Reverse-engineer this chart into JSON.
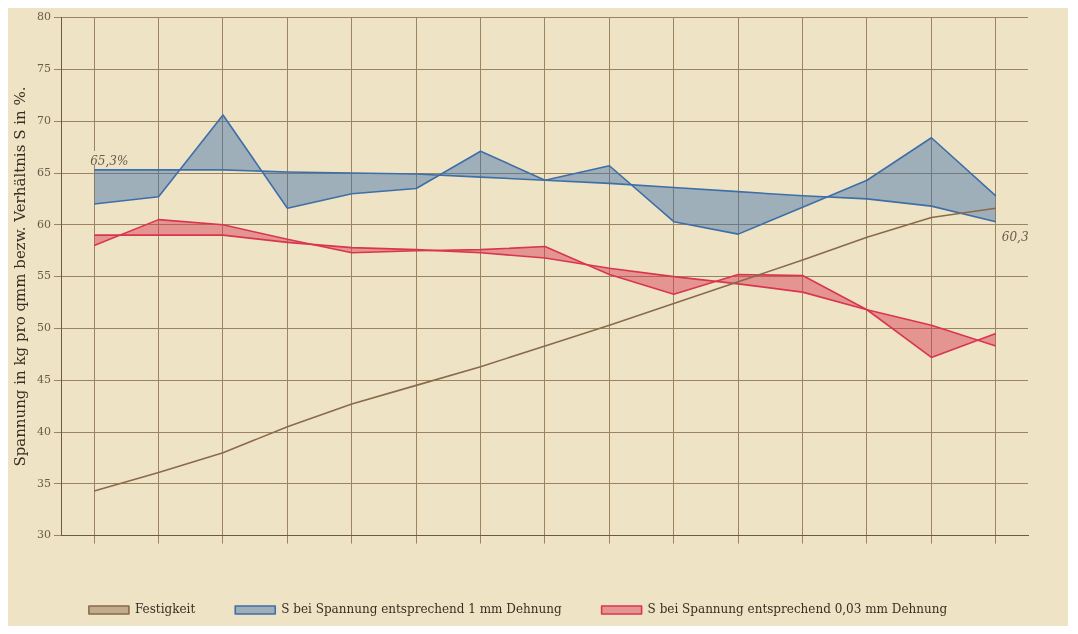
{
  "chart_data": {
    "type": "line",
    "ylabel": "Spannung in kg pro qmm bezw. Verhältnis S in %.",
    "categories": [
      null,
      null,
      null,
      null,
      null,
      null,
      null,
      null,
      null,
      null,
      null,
      null,
      null,
      null,
      null
    ],
    "series": [
      {
        "name": "Festigkeit",
        "color": "#8a6a4a",
        "values": [
          34.3,
          36.1,
          38.0,
          40.5,
          42.7,
          44.5,
          46.3,
          48.3,
          50.3,
          52.4,
          54.5,
          56.6,
          58.8,
          60.7,
          61.6
        ]
      },
      {
        "name": "S bei Spannung entsprechend 1 mm Dehnung",
        "color": "#3f6fa8",
        "values": [
          62.0,
          62.7,
          70.6,
          61.6,
          63.0,
          63.5,
          67.1,
          64.3,
          65.7,
          60.3,
          59.1,
          61.7,
          64.3,
          68.4,
          62.8
        ],
        "lower": [
          65.3,
          65.3,
          65.3,
          65.1,
          65.0,
          64.9,
          64.6,
          64.3,
          64.0,
          63.6,
          63.2,
          62.8,
          62.5,
          61.8,
          60.3
        ],
        "upper": [
          62.0,
          62.7,
          70.6,
          61.6,
          63.0,
          63.5,
          67.1,
          64.3,
          65.7,
          60.3,
          59.1,
          61.7,
          64.3,
          68.4,
          62.8
        ]
      },
      {
        "color": "#3f6fa8",
        "values": [
          65.3,
          65.3,
          65.3,
          65.1,
          65.0,
          64.9,
          64.6,
          64.3,
          64.0,
          63.6,
          63.2,
          62.8,
          62.5,
          61.8,
          60.3
        ]
      },
      {
        "name": "S bei Spannung entsprechend 0,03 mm Dehnung",
        "color": "#d9364f",
        "values": [
          58.0,
          60.5,
          60.0,
          58.6,
          57.3,
          57.5,
          57.6,
          57.9,
          55.2,
          53.3,
          55.2,
          55.1,
          51.8,
          47.2,
          49.5
        ],
        "lower": [
          59.0,
          59.0,
          59.0,
          58.3,
          57.8,
          57.6,
          57.3,
          56.8,
          55.8,
          55.0,
          54.3,
          53.5,
          51.8,
          50.3,
          48.3
        ],
        "upper": [
          58.0,
          60.5,
          60.0,
          58.6,
          57.3,
          57.5,
          57.6,
          57.9,
          55.2,
          53.3,
          55.2,
          55.1,
          51.8,
          47.2,
          49.5
        ]
      },
      {
        "color": "#d9364f",
        "values": [
          59.0,
          59.0,
          59.0,
          58.3,
          57.8,
          57.6,
          57.3,
          56.8,
          55.8,
          55.0,
          54.3,
          53.5,
          51.8,
          50.3,
          48.3
        ]
      }
    ],
    "annotations": [
      {
        "text": "65,3%",
        "y": 65.3
      },
      "60,3"
    ],
    "ylim": [
      30,
      80
    ],
    "yticks": [
      30,
      35,
      40,
      45,
      50,
      55,
      60,
      65,
      70,
      75,
      80
    ],
    "grid": true,
    "legend": "bottom",
    "marker": "none",
    "line_style": "solid"
  }
}
